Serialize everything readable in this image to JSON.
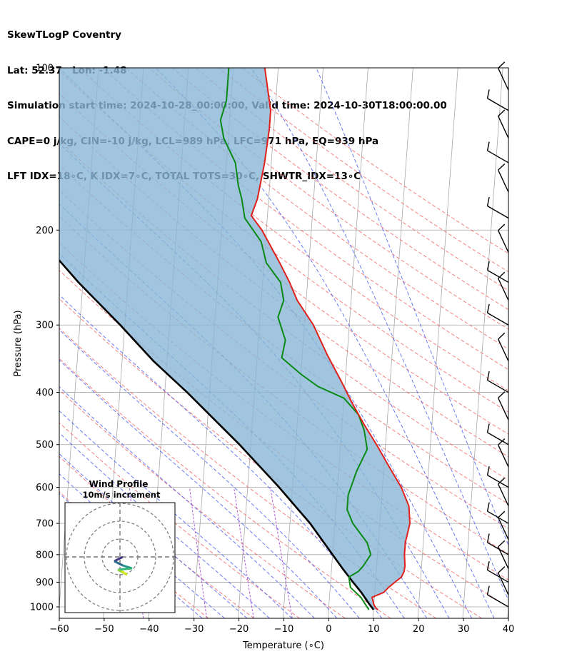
{
  "header": {
    "line1": "SkewTLogP Coventry",
    "line2": "Lat: 52.37   Lon: -1.48",
    "line3": "Simulation start time: 2024-10-28_00:00:00, Valid time: 2024-10-30T18:00:00.00",
    "line4": "CAPE=0 j/kg, CIN=-10 j/kg, LCL=989 hPa, LFC=971 hPa, EQ=939 hPa",
    "line5": "LFT IDX=18∘C, K IDX=7∘C, TOTAL TOTS=30∘C, SHWTR_IDX=13∘C"
  },
  "colors": {
    "temperature": "#e0201b",
    "dewpoint": "#0a8a14",
    "parcel": "#000000",
    "cape_cin_fill": "#8ab6d6",
    "dry_adiabats": "#f05a5a",
    "moist_adiabats": "#3a4ef0",
    "isotherms": "#a8a8a8",
    "mixing_ratio": "#9933cc"
  },
  "chart_data": {
    "type": "skew-t log-p",
    "xlabel": "Temperature (∘C)",
    "ylabel": "Pressure (hPa)",
    "xlim": [
      -60,
      40
    ],
    "ylim": [
      1050,
      100
    ],
    "x_ticks": [
      -60,
      -50,
      -40,
      -30,
      -20,
      -10,
      0,
      10,
      20,
      30,
      40
    ],
    "y_ticks": [
      100,
      200,
      300,
      400,
      500,
      600,
      700,
      800,
      900,
      1000
    ],
    "y_scale": "log",
    "grid": true,
    "temperature_profile": [
      [
        1012,
        11
      ],
      [
        1005,
        10.5
      ],
      [
        990,
        10
      ],
      [
        960,
        9.5
      ],
      [
        940,
        12
      ],
      [
        920,
        13
      ],
      [
        900,
        14.3
      ],
      [
        880,
        15.7
      ],
      [
        860,
        16.2
      ],
      [
        840,
        16.3
      ],
      [
        800,
        16
      ],
      [
        760,
        16
      ],
      [
        700,
        16.7
      ],
      [
        650,
        16.2
      ],
      [
        600,
        14.2
      ],
      [
        550,
        11.2
      ],
      [
        500,
        8
      ],
      [
        460,
        5
      ],
      [
        420,
        2
      ],
      [
        380,
        -1
      ],
      [
        340,
        -4.5
      ],
      [
        300,
        -8
      ],
      [
        270,
        -12
      ],
      [
        250,
        -14
      ],
      [
        230,
        -16.5
      ],
      [
        200,
        -21
      ],
      [
        188,
        -23.6
      ],
      [
        175,
        -22.5
      ],
      [
        150,
        -21.5
      ],
      [
        130,
        -21
      ],
      [
        120,
        -21
      ],
      [
        100,
        -23
      ]
    ],
    "dewpoint_profile": [
      [
        1012,
        9
      ],
      [
        1000,
        8.5
      ],
      [
        960,
        7
      ],
      [
        920,
        4.5
      ],
      [
        880,
        4
      ],
      [
        860,
        6
      ],
      [
        840,
        7
      ],
      [
        800,
        8.5
      ],
      [
        760,
        7.5
      ],
      [
        700,
        4
      ],
      [
        660,
        2.5
      ],
      [
        620,
        2.5
      ],
      [
        560,
        4
      ],
      [
        510,
        6
      ],
      [
        470,
        5
      ],
      [
        440,
        3.5
      ],
      [
        410,
        0
      ],
      [
        390,
        -6
      ],
      [
        370,
        -10
      ],
      [
        345,
        -14.5
      ],
      [
        320,
        -14
      ],
      [
        290,
        -16
      ],
      [
        270,
        -15
      ],
      [
        250,
        -16
      ],
      [
        230,
        -19.5
      ],
      [
        210,
        -21
      ],
      [
        190,
        -25
      ],
      [
        175,
        -26
      ],
      [
        165,
        -27
      ],
      [
        150,
        -28
      ],
      [
        135,
        -31
      ],
      [
        125,
        -32
      ],
      [
        115,
        -31
      ],
      [
        100,
        -31
      ]
    ],
    "parcel_profile": [
      [
        1012,
        10
      ],
      [
        1000,
        9.5
      ],
      [
        989,
        9
      ],
      [
        940,
        7
      ],
      [
        900,
        5
      ],
      [
        850,
        2.5
      ],
      [
        800,
        0
      ],
      [
        700,
        -5.5
      ],
      [
        600,
        -13
      ],
      [
        500,
        -22.5
      ],
      [
        400,
        -35
      ],
      [
        350,
        -43
      ],
      [
        300,
        -51
      ],
      [
        250,
        -61
      ],
      [
        200,
        -72
      ],
      [
        150,
        -86
      ],
      [
        125,
        -95
      ],
      [
        100,
        -106
      ]
    ],
    "wind_barbs": [
      [
        1000,
        0
      ],
      [
        950,
        0
      ],
      [
        900,
        0
      ],
      [
        850,
        0
      ],
      [
        800,
        0
      ],
      [
        750,
        0
      ],
      [
        700,
        0
      ],
      [
        650,
        0
      ],
      [
        600,
        0
      ],
      [
        550,
        0
      ],
      [
        500,
        0
      ],
      [
        450,
        0
      ],
      [
        400,
        0
      ],
      [
        350,
        0
      ],
      [
        300,
        0
      ],
      [
        270,
        0
      ],
      [
        250,
        0
      ],
      [
        220,
        0
      ],
      [
        190,
        0
      ],
      [
        170,
        0
      ],
      [
        150,
        0
      ],
      [
        135,
        0
      ],
      [
        120,
        0
      ],
      [
        110,
        0
      ]
    ],
    "hodograph": {
      "title": "Wind Profile",
      "subtitle": "10m/s increment"
    }
  }
}
